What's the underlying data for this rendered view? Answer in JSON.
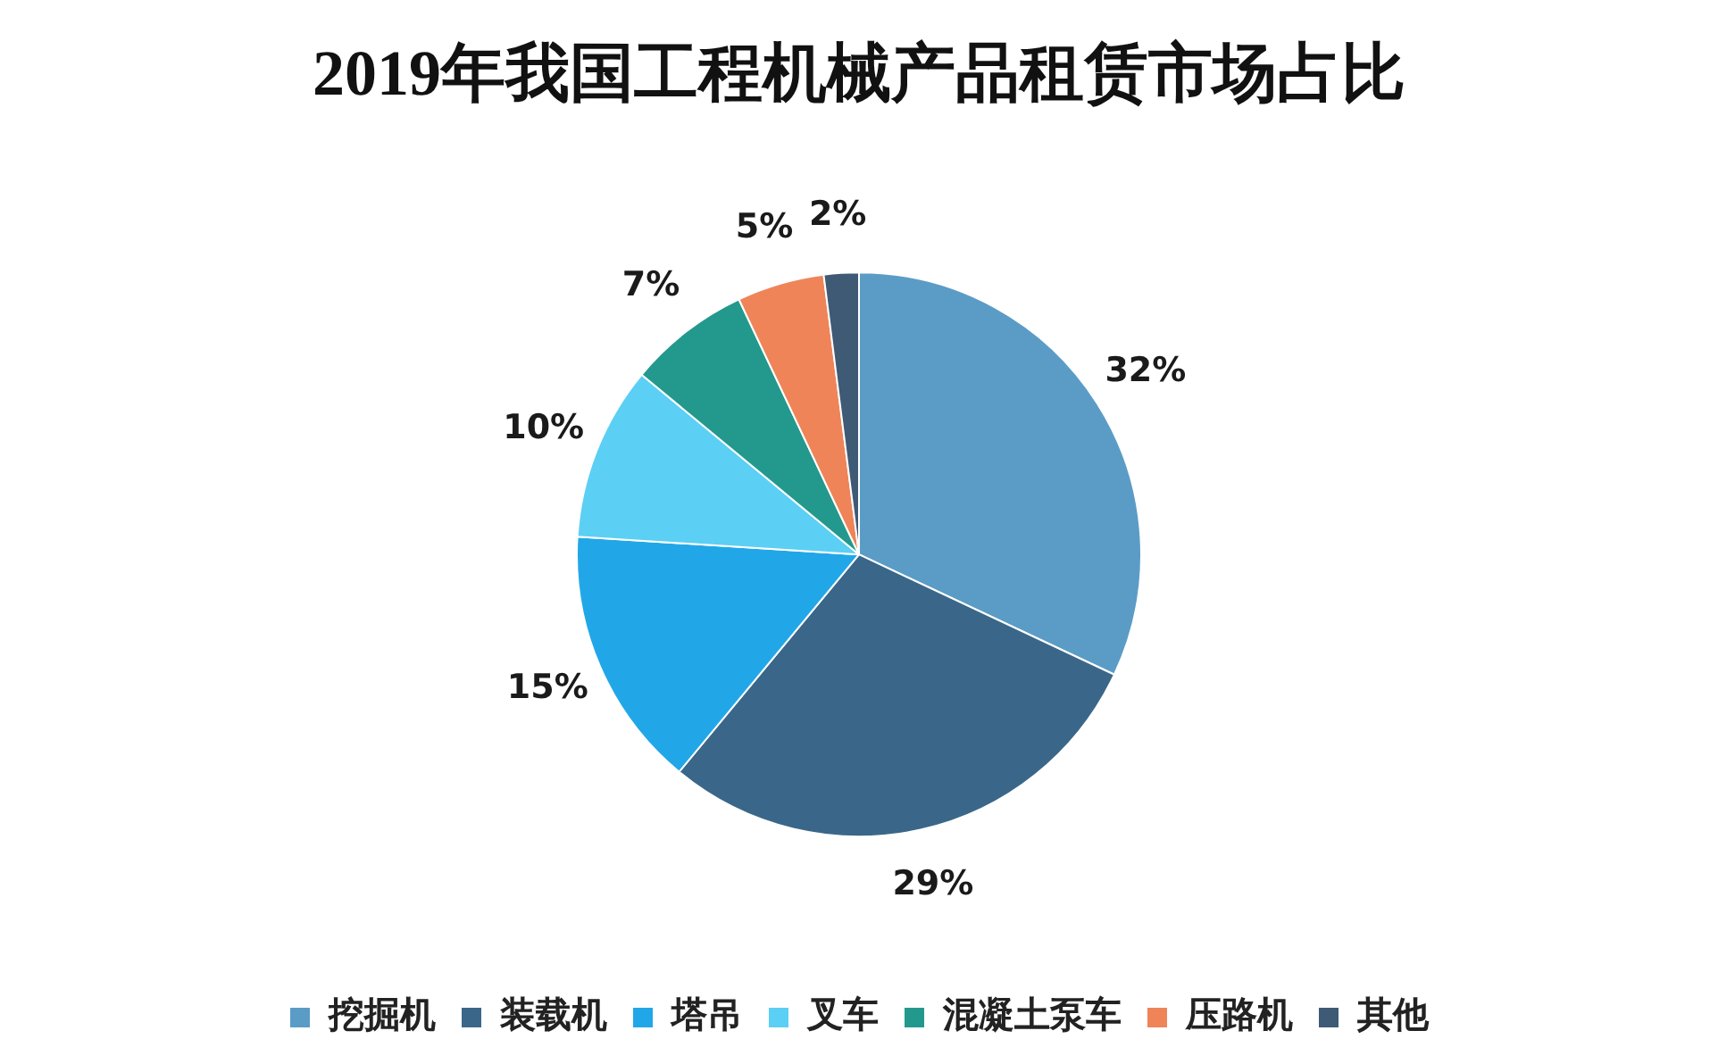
{
  "chart_data": {
    "type": "pie",
    "title": "2019年我国工程机械产品租赁市场占比",
    "categories": [
      "挖掘机",
      "装载机",
      "塔吊",
      "叉车",
      "混凝土泵车",
      "压路机",
      "其他"
    ],
    "values": [
      32,
      29,
      15,
      10,
      7,
      5,
      2
    ],
    "colors": [
      "#5b9cc6",
      "#3a6789",
      "#21a7e8",
      "#5ccff4",
      "#23998d",
      "#ef8459",
      "#3f5a75"
    ],
    "value_labels": [
      "32%",
      "29%",
      "15%",
      "10%",
      "7%",
      "5%",
      "2%"
    ],
    "legend": "bottom"
  }
}
